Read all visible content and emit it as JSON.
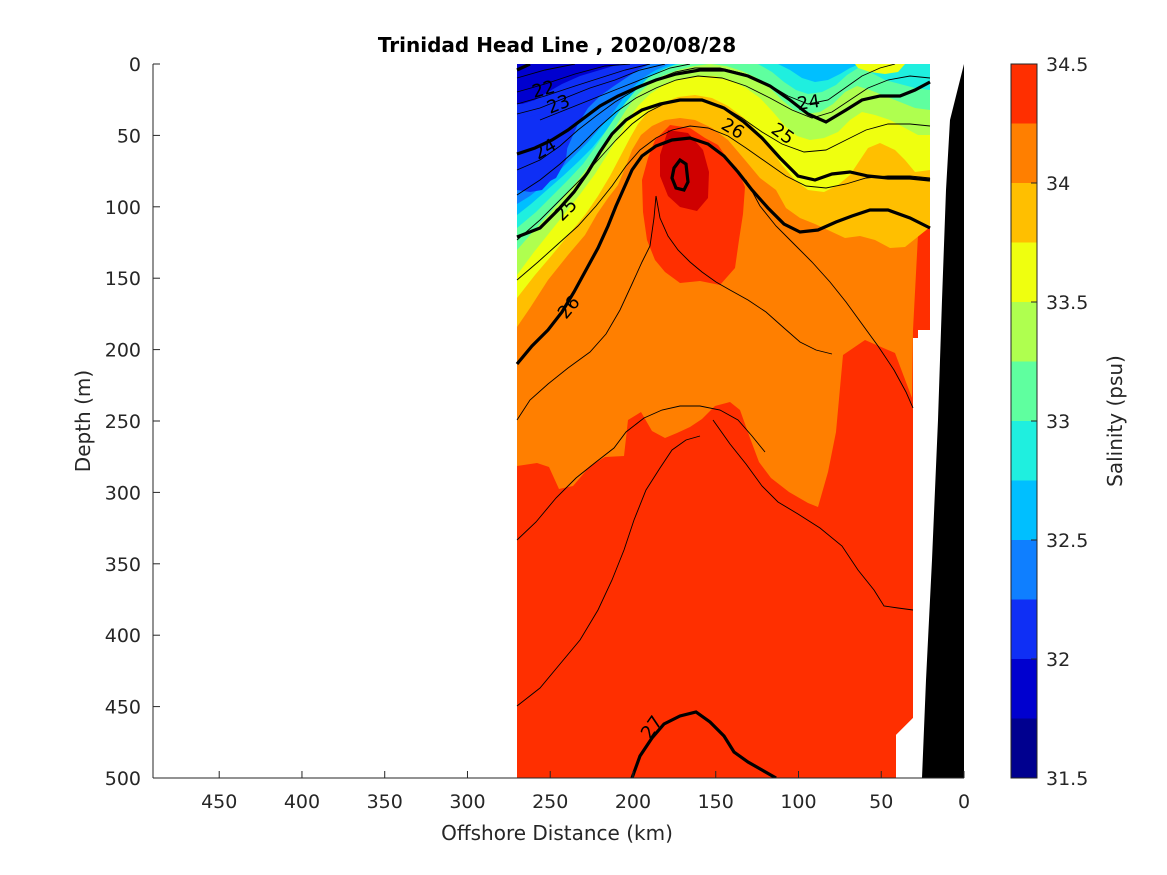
{
  "chart_data": {
    "type": "heatmap",
    "title": "Trinidad Head Line , 2020/08/28",
    "xlabel": "Offshore Distance (km)",
    "ylabel": "Depth (m)",
    "xlim": [
      490,
      0
    ],
    "ylim": [
      500,
      0
    ],
    "x_ticks": [
      "450",
      "400",
      "350",
      "300",
      "250",
      "200",
      "150",
      "100",
      "50",
      "0"
    ],
    "y_ticks": [
      "0",
      "50",
      "100",
      "150",
      "200",
      "250",
      "300",
      "350",
      "400",
      "450",
      "500"
    ],
    "colorbar": {
      "label": "Salinity (psu)",
      "range": [
        31.5,
        34.5
      ],
      "tick_labels": [
        "31.5",
        "32",
        "32.5",
        "33",
        "33.5",
        "34",
        "34.5"
      ],
      "levels": [
        31.5,
        31.75,
        32.0,
        32.25,
        32.5,
        32.75,
        33.0,
        33.25,
        33.5,
        33.75,
        34.0,
        34.25,
        34.5
      ],
      "colors": [
        "#00008f",
        "#0000cf",
        "#0f2ff5",
        "#0f7fff",
        "#00bfff",
        "#1fefdf",
        "#5fff9f",
        "#afff4f",
        "#efff0f",
        "#ffbf00",
        "#ff7f00",
        "#ff2f00",
        "#cf0000"
      ]
    },
    "data_extent": {
      "x": [
        270,
        20
      ],
      "y": [
        0,
        500
      ]
    },
    "density_contours": [
      {
        "value": "22",
        "bold": true
      },
      {
        "value": "23",
        "bold": false
      },
      {
        "value": "24",
        "bold": true
      },
      {
        "value": "25",
        "bold": true
      },
      {
        "value": "26",
        "bold": true
      },
      {
        "value": "27",
        "bold": true
      }
    ],
    "bathymetry": "black shelf/slope on the right"
  }
}
